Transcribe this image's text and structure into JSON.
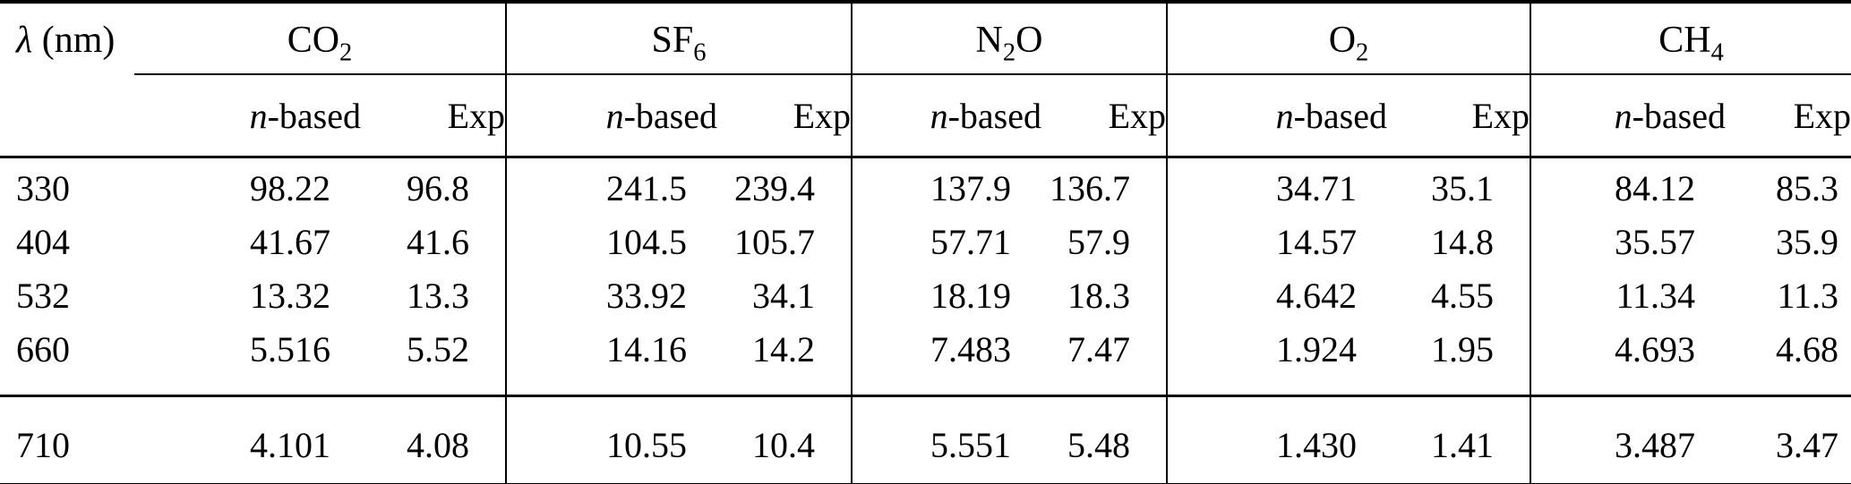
{
  "table": {
    "wavelength_header": {
      "lambda_symbol": "λ",
      "unit_suffix": " (nm)"
    },
    "subheaders": {
      "n_italic": "n",
      "based_suffix": "-based",
      "exp": "Exp"
    },
    "gases": [
      {
        "name": "CO2",
        "formula_parts": [
          {
            "t": "CO"
          },
          {
            "s": "2"
          }
        ]
      },
      {
        "name": "SF6",
        "formula_parts": [
          {
            "t": "SF"
          },
          {
            "s": "6"
          }
        ]
      },
      {
        "name": "N2O",
        "formula_parts": [
          {
            "t": "N"
          },
          {
            "s": "2"
          },
          {
            "t": "O"
          }
        ]
      },
      {
        "name": "O2",
        "formula_parts": [
          {
            "t": "O"
          },
          {
            "s": "2"
          }
        ]
      },
      {
        "name": "CH4",
        "formula_parts": [
          {
            "t": "CH"
          },
          {
            "s": "4"
          }
        ]
      }
    ],
    "rows": [
      {
        "wavelength": "330",
        "values": [
          [
            "98.22",
            "96.8"
          ],
          [
            "241.5",
            "239.4"
          ],
          [
            "137.9",
            "136.7"
          ],
          [
            "34.71",
            "35.1"
          ],
          [
            "84.12",
            "85.3"
          ]
        ]
      },
      {
        "wavelength": "404",
        "values": [
          [
            "41.67",
            "41.6"
          ],
          [
            "104.5",
            "105.7"
          ],
          [
            "57.71",
            "57.9"
          ],
          [
            "14.57",
            "14.8"
          ],
          [
            "35.57",
            "35.9"
          ]
        ]
      },
      {
        "wavelength": "532",
        "values": [
          [
            "13.32",
            "13.3"
          ],
          [
            "33.92",
            "34.1"
          ],
          [
            "18.19",
            "18.3"
          ],
          [
            "4.642",
            "4.55"
          ],
          [
            "11.34",
            "11.3"
          ]
        ]
      },
      {
        "wavelength": "660",
        "values": [
          [
            "5.516",
            "5.52"
          ],
          [
            "14.16",
            "14.2"
          ],
          [
            "7.483",
            "7.47"
          ],
          [
            "1.924",
            "1.95"
          ],
          [
            "4.693",
            "4.68"
          ]
        ]
      }
    ],
    "footer_rows": [
      {
        "wavelength": "710",
        "values": [
          [
            "4.101",
            "4.08"
          ],
          [
            "10.55",
            "10.4"
          ],
          [
            "5.551",
            "5.48"
          ],
          [
            "1.430",
            "1.41"
          ],
          [
            "3.487",
            "3.47"
          ]
        ]
      }
    ],
    "colors": {
      "text": "#000000",
      "background": "#ffffff",
      "rule": "#000000"
    }
  }
}
